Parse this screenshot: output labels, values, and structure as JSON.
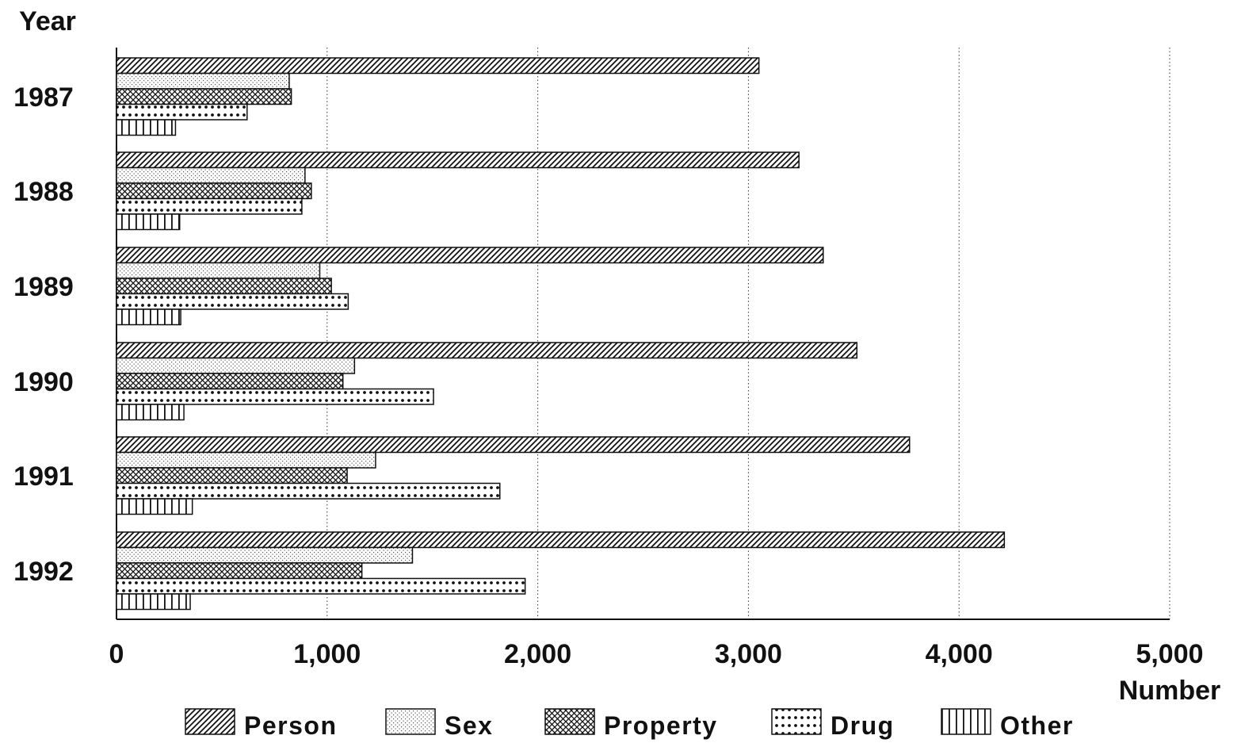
{
  "chart_data": {
    "type": "bar",
    "orientation": "horizontal",
    "title": "",
    "ylabel": "Year",
    "xlabel": "Number",
    "categories": [
      "1987",
      "1988",
      "1989",
      "1990",
      "1991",
      "1992"
    ],
    "xlim": [
      0,
      5000
    ],
    "xticks": [
      0,
      1000,
      2000,
      3000,
      4000,
      5000
    ],
    "xtick_labels": [
      "0",
      "1,000",
      "2,000",
      "3,000",
      "4,000",
      "5,000"
    ],
    "grid": "vertical dotted",
    "legend_placement": "bottom",
    "series": [
      {
        "name": "Person",
        "pattern": "diagonal-hatch",
        "values": [
          3050,
          3240,
          3355,
          3515,
          3765,
          4215
        ]
      },
      {
        "name": "Sex",
        "pattern": "fine-dots",
        "values": [
          820,
          895,
          965,
          1130,
          1230,
          1405
        ]
      },
      {
        "name": "Property",
        "pattern": "cross-hatch",
        "values": [
          830,
          925,
          1020,
          1075,
          1095,
          1165
        ]
      },
      {
        "name": "Drug",
        "pattern": "coarse-dots",
        "values": [
          620,
          880,
          1100,
          1505,
          1820,
          1940
        ]
      },
      {
        "name": "Other",
        "pattern": "vertical-lines",
        "values": [
          280,
          300,
          305,
          320,
          360,
          350
        ]
      }
    ]
  }
}
